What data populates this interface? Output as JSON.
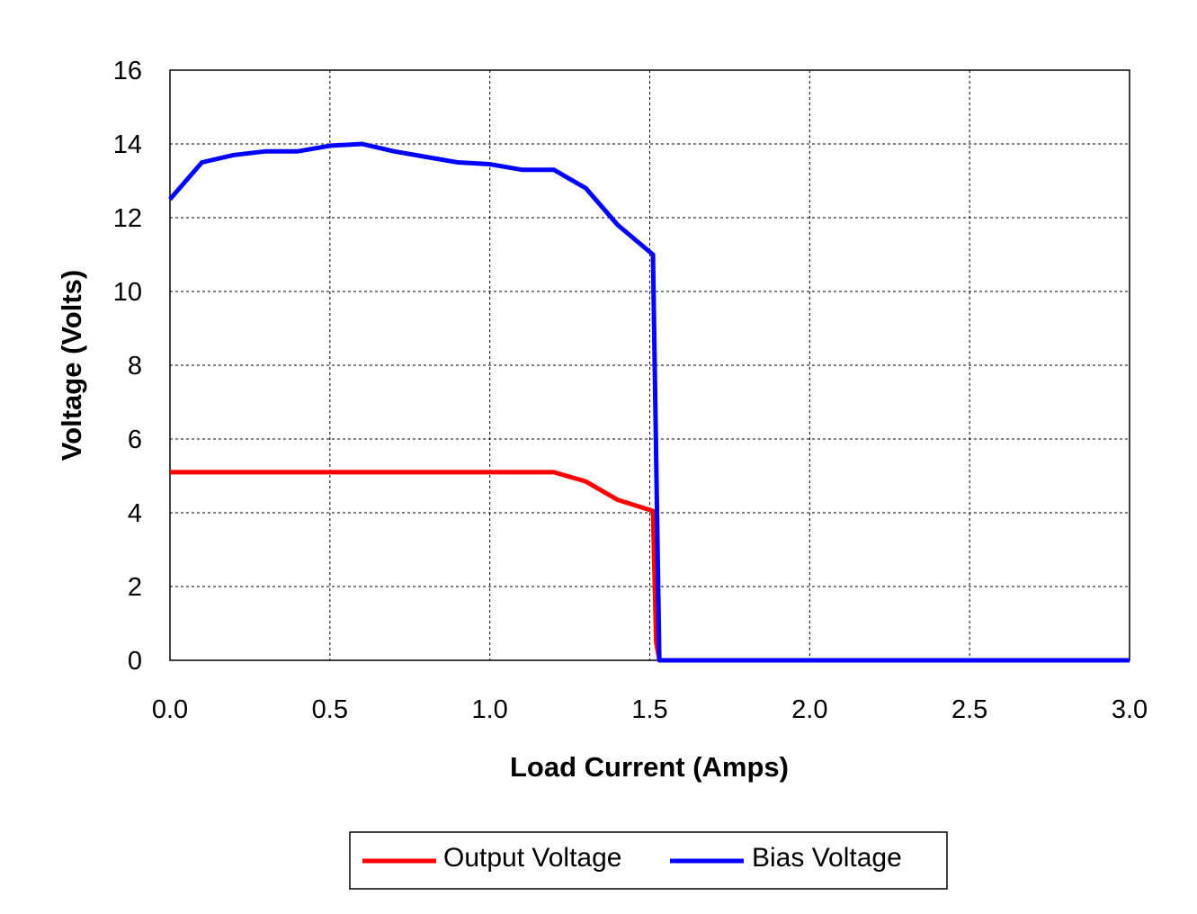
{
  "chart_data": {
    "type": "line",
    "title": "",
    "xlabel": "Load Current (Amps)",
    "ylabel": "Voltage (Volts)",
    "xlim": [
      0,
      3.0
    ],
    "ylim": [
      0,
      16
    ],
    "xticks": [
      "0.0",
      "0.5",
      "1.0",
      "1.5",
      "2.0",
      "2.5",
      "3.0"
    ],
    "yticks": [
      "0",
      "2",
      "4",
      "6",
      "8",
      "10",
      "12",
      "14",
      "16"
    ],
    "grid": true,
    "legend_position": "bottom",
    "series": [
      {
        "name": "Output Voltage",
        "color": "#ff0000",
        "x": [
          0,
          0.1,
          0.2,
          0.3,
          0.4,
          0.5,
          0.6,
          0.7,
          0.8,
          0.9,
          1.0,
          1.1,
          1.2,
          1.3,
          1.4,
          1.51,
          1.52,
          1.53,
          3.0
        ],
        "y": [
          5.1,
          5.1,
          5.1,
          5.1,
          5.1,
          5.1,
          5.1,
          5.1,
          5.1,
          5.1,
          5.1,
          5.1,
          5.1,
          4.85,
          4.35,
          4.05,
          0.5,
          0,
          0
        ]
      },
      {
        "name": "Bias Voltage",
        "color": "#0000ff",
        "x": [
          0,
          0.1,
          0.2,
          0.3,
          0.4,
          0.5,
          0.6,
          0.7,
          0.8,
          0.9,
          1.0,
          1.1,
          1.2,
          1.3,
          1.4,
          1.51,
          1.53,
          3.0
        ],
        "y": [
          12.5,
          13.5,
          13.7,
          13.8,
          13.8,
          13.95,
          14.0,
          13.8,
          13.65,
          13.5,
          13.45,
          13.3,
          13.3,
          12.8,
          11.8,
          11.0,
          0,
          0
        ]
      }
    ]
  }
}
